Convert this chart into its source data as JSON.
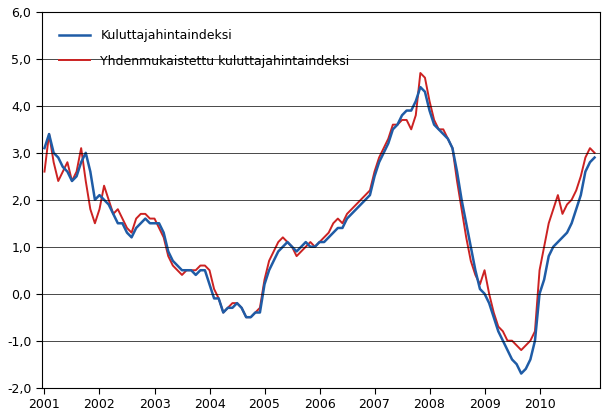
{
  "ylim": [
    -2.0,
    6.0
  ],
  "yticks": [
    -2.0,
    -1.0,
    0.0,
    1.0,
    2.0,
    3.0,
    4.0,
    5.0,
    6.0
  ],
  "ytick_labels": [
    "-2,0",
    "-1,0",
    "0,0",
    "1,0",
    "2,0",
    "3,0",
    "4,0",
    "5,0",
    "6,0"
  ],
  "xtick_years": [
    2001,
    2002,
    2003,
    2004,
    2005,
    2006,
    2007,
    2008,
    2009,
    2010
  ],
  "legend1_label": "Kuluttajahintaindeksi",
  "legend2_label": "Yhdenmukaistettu kuluttajahintaindeksi",
  "line1_color": "#1F5CA6",
  "line2_color": "#CC2222",
  "background_color": "#ffffff",
  "khi_data": [
    3.1,
    3.4,
    3.0,
    2.9,
    2.7,
    2.6,
    2.4,
    2.5,
    2.8,
    3.0,
    2.6,
    2.0,
    2.1,
    2.0,
    1.9,
    1.7,
    1.5,
    1.5,
    1.3,
    1.2,
    1.4,
    1.5,
    1.6,
    1.5,
    1.5,
    1.5,
    1.3,
    0.9,
    0.7,
    0.6,
    0.5,
    0.5,
    0.5,
    0.4,
    0.5,
    0.5,
    0.2,
    -0.1,
    -0.1,
    -0.4,
    -0.3,
    -0.3,
    -0.2,
    -0.3,
    -0.5,
    -0.5,
    -0.4,
    -0.4,
    0.2,
    0.5,
    0.7,
    0.9,
    1.0,
    1.1,
    1.0,
    0.9,
    1.0,
    1.1,
    1.0,
    1.0,
    1.1,
    1.1,
    1.2,
    1.3,
    1.4,
    1.4,
    1.6,
    1.7,
    1.8,
    1.9,
    2.0,
    2.1,
    2.5,
    2.8,
    3.0,
    3.2,
    3.5,
    3.6,
    3.8,
    3.9,
    3.9,
    4.1,
    4.4,
    4.3,
    3.9,
    3.6,
    3.5,
    3.4,
    3.3,
    3.1,
    2.6,
    2.0,
    1.5,
    1.0,
    0.5,
    0.1,
    0.0,
    -0.2,
    -0.5,
    -0.8,
    -1.0,
    -1.2,
    -1.4,
    -1.5,
    -1.7,
    -1.6,
    -1.4,
    -1.0,
    0.0,
    0.3,
    0.8,
    1.0,
    1.1,
    1.2,
    1.3,
    1.5,
    1.8,
    2.1,
    2.6,
    2.8,
    2.9
  ],
  "hicp_data": [
    2.6,
    3.4,
    2.8,
    2.4,
    2.6,
    2.8,
    2.4,
    2.6,
    3.1,
    2.4,
    1.8,
    1.5,
    1.8,
    2.3,
    2.0,
    1.7,
    1.8,
    1.6,
    1.4,
    1.3,
    1.6,
    1.7,
    1.7,
    1.6,
    1.6,
    1.4,
    1.2,
    0.8,
    0.6,
    0.5,
    0.4,
    0.5,
    0.5,
    0.5,
    0.6,
    0.6,
    0.5,
    0.1,
    -0.1,
    -0.4,
    -0.3,
    -0.2,
    -0.2,
    -0.3,
    -0.5,
    -0.5,
    -0.4,
    -0.3,
    0.3,
    0.7,
    0.9,
    1.1,
    1.2,
    1.1,
    1.0,
    0.8,
    0.9,
    1.0,
    1.1,
    1.0,
    1.1,
    1.2,
    1.3,
    1.5,
    1.6,
    1.5,
    1.7,
    1.8,
    1.9,
    2.0,
    2.1,
    2.2,
    2.6,
    2.9,
    3.1,
    3.3,
    3.6,
    3.6,
    3.7,
    3.7,
    3.5,
    3.8,
    4.7,
    4.6,
    4.1,
    3.7,
    3.5,
    3.5,
    3.3,
    3.1,
    2.4,
    1.8,
    1.2,
    0.7,
    0.4,
    0.2,
    0.5,
    0.0,
    -0.4,
    -0.7,
    -0.8,
    -1.0,
    -1.0,
    -1.1,
    -1.2,
    -1.1,
    -1.0,
    -0.8,
    0.5,
    1.0,
    1.5,
    1.8,
    2.1,
    1.7,
    1.9,
    2.0,
    2.2,
    2.5,
    2.9,
    3.1,
    3.0
  ]
}
